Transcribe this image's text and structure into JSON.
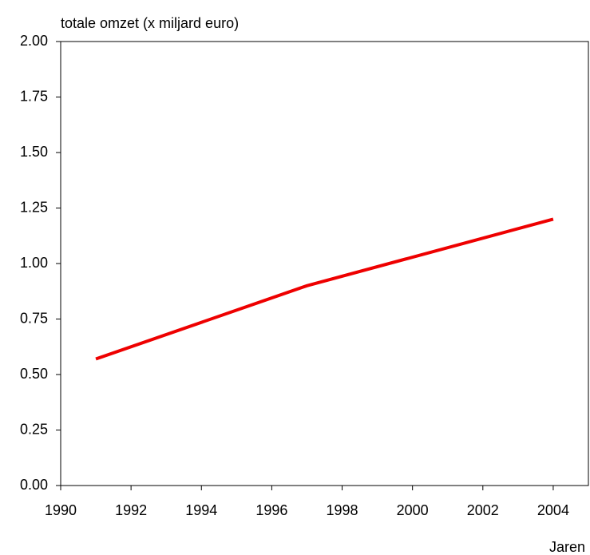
{
  "chart_data": {
    "type": "line",
    "y_label": "totale omzet (x miljard euro)",
    "x_label": "Jaren",
    "x": [
      1991,
      1997,
      2004
    ],
    "series": [
      {
        "name": null,
        "color": "#ee0000",
        "values": [
          0.57,
          0.9,
          1.2
        ]
      }
    ],
    "xlim": [
      1990,
      2005
    ],
    "xticks": [
      1990,
      1992,
      1994,
      1996,
      1998,
      2000,
      2002,
      2004
    ],
    "ylim": [
      0,
      2
    ],
    "yticks": [
      {
        "value": 0,
        "label": "0.00"
      },
      {
        "value": 0.25,
        "label": "0.25"
      },
      {
        "value": 0.5,
        "label": "0.50"
      },
      {
        "value": 0.75,
        "label": "0.75"
      },
      {
        "value": 1,
        "label": "1.00"
      },
      {
        "value": 1.25,
        "label": "1.25"
      },
      {
        "value": 1.5,
        "label": "1.50"
      },
      {
        "value": 1.75,
        "label": "1.75"
      },
      {
        "value": 2,
        "label": "2.00"
      }
    ],
    "grid": false
  }
}
